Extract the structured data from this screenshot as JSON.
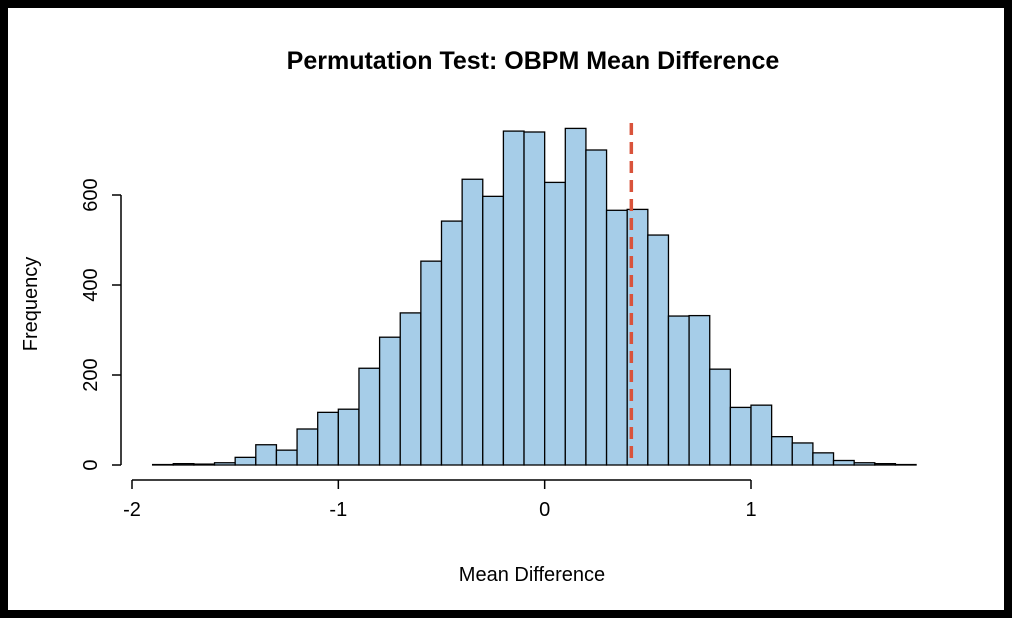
{
  "chart_data": {
    "type": "bar",
    "title": "Permutation Test: OBPM Mean Difference",
    "xlabel": "Mean Difference",
    "ylabel": "Frequency",
    "bin_width": 0.1,
    "bin_starts": [
      -1.9,
      -1.8,
      -1.7,
      -1.6,
      -1.5,
      -1.4,
      -1.3,
      -1.2,
      -1.1,
      -1.0,
      -0.9,
      -0.8,
      -0.7,
      -0.6,
      -0.5,
      -0.4,
      -0.3,
      -0.2,
      -0.1,
      0.0,
      0.1,
      0.2,
      0.3,
      0.4,
      0.5,
      0.6,
      0.7,
      0.8,
      0.9,
      1.0,
      1.1,
      1.2,
      1.3,
      1.4,
      1.5,
      1.6,
      1.7
    ],
    "values": [
      1,
      3,
      2,
      5,
      17,
      45,
      33,
      80,
      117,
      124,
      215,
      284,
      338,
      453,
      542,
      635,
      597,
      742,
      740,
      628,
      748,
      700,
      566,
      568,
      511,
      331,
      332,
      213,
      128,
      133,
      63,
      49,
      27,
      10,
      5,
      3,
      1
    ],
    "xlim": [
      -2,
      1.8
    ],
    "ylim": [
      0,
      760
    ],
    "x_ticks": [
      -2,
      -1,
      0,
      1
    ],
    "x_tick_labels": [
      "-2",
      "-1",
      "0",
      "1"
    ],
    "y_ticks": [
      0,
      200,
      400,
      600
    ],
    "y_tick_labels": [
      "0",
      "200",
      "400",
      "600"
    ],
    "reference_line": {
      "x": 0.42,
      "color": "#d9533b",
      "style": "dashed"
    },
    "bar_color": "#a6cde8",
    "grid": false
  }
}
